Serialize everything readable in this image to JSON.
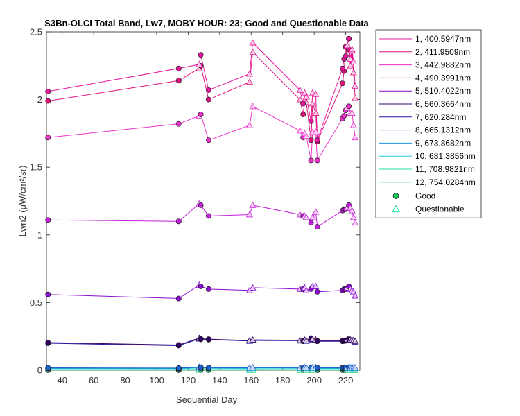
{
  "chart_data": {
    "type": "line",
    "title": "S3Bn-OLCI Total Band, Lw7, MOBY HOUR: 23;  Good and Questionable Data",
    "xlabel": "Sequential Day",
    "ylabel": "Lwn2 (µW/cm²/sr)",
    "xlim": [
      30,
      229
    ],
    "ylim": [
      0,
      2.5
    ],
    "xticks": [
      40,
      60,
      80,
      100,
      120,
      140,
      160,
      180,
      200,
      220
    ],
    "yticks": [
      0,
      0.5,
      1,
      1.5,
      2,
      2.5
    ],
    "ytick_labels": [
      "0",
      "0.5",
      "1",
      "1.5",
      "2",
      "2.5"
    ],
    "x": [
      31,
      114,
      127,
      128,
      133,
      159,
      161,
      191,
      193,
      194,
      195,
      198,
      199,
      201,
      202,
      218,
      219,
      220,
      221,
      222,
      223,
      224,
      225,
      226
    ],
    "quality": [
      "G",
      "G",
      "Q",
      "G",
      "G",
      "Q",
      "Q",
      "Q",
      "G",
      "Q",
      "Q",
      "G",
      "Q",
      "Q",
      "G",
      "G",
      "G",
      "G",
      "Q",
      "G",
      "Q",
      "Q",
      "Q",
      "Q"
    ],
    "series": [
      {
        "name": "1, 400.5947nm",
        "color": "#e8179c",
        "values": [
          2.06,
          2.23,
          2.26,
          2.33,
          2.07,
          2.19,
          2.42,
          2.07,
          1.97,
          2.05,
          2.02,
          1.84,
          2.05,
          2.04,
          1.7,
          2.23,
          2.3,
          2.32,
          2.4,
          2.45,
          2.3,
          2.37,
          2.28,
          2.1
        ]
      },
      {
        "name": "2, 411.9509nm",
        "color": "#e0137c",
        "values": [
          1.99,
          2.14,
          2.23,
          2.25,
          2.0,
          2.13,
          2.35,
          2.0,
          1.89,
          1.99,
          1.98,
          1.7,
          1.97,
          1.9,
          1.69,
          2.12,
          2.21,
          2.39,
          2.34,
          2.37,
          2.25,
          2.36,
          2.2,
          2.01
        ]
      },
      {
        "name": "3, 442.9882nm",
        "color": "#ee33cc",
        "values": [
          1.72,
          1.82,
          1.88,
          1.89,
          1.7,
          1.81,
          1.95,
          1.77,
          1.72,
          1.75,
          1.73,
          1.55,
          1.76,
          1.76,
          1.55,
          1.86,
          1.88,
          1.92,
          1.94,
          1.95,
          1.9,
          1.9,
          1.81,
          1.72
        ]
      },
      {
        "name": "4, 490.3991nm",
        "color": "#c21fd8",
        "values": [
          1.11,
          1.1,
          1.23,
          1.22,
          1.14,
          1.15,
          1.22,
          1.15,
          1.14,
          1.14,
          1.13,
          1.09,
          1.13,
          1.17,
          1.06,
          1.18,
          1.19,
          1.19,
          1.2,
          1.22,
          1.2,
          1.18,
          1.13,
          1.09
        ]
      },
      {
        "name": "5, 510.4022nm",
        "color": "#8e0cd4",
        "values": [
          0.56,
          0.53,
          0.63,
          0.62,
          0.6,
          0.59,
          0.61,
          0.6,
          0.6,
          0.61,
          0.59,
          0.6,
          0.62,
          0.62,
          0.58,
          0.59,
          0.6,
          0.6,
          0.61,
          0.62,
          0.6,
          0.59,
          0.58,
          0.55
        ]
      },
      {
        "name": "6, 560.3664nm",
        "color": "#330066",
        "values": [
          0.205,
          0.187,
          0.238,
          0.233,
          0.23,
          0.22,
          0.225,
          0.222,
          0.218,
          0.225,
          0.22,
          0.238,
          0.23,
          0.226,
          0.218,
          0.218,
          0.22,
          0.222,
          0.228,
          0.23,
          0.226,
          0.225,
          0.222,
          0.215
        ]
      },
      {
        "name": "7,  620.284nm",
        "color": "#2219a8",
        "values": [
          0.2,
          0.182,
          0.232,
          0.228,
          0.226,
          0.216,
          0.22,
          0.218,
          0.214,
          0.22,
          0.216,
          0.232,
          0.225,
          0.222,
          0.214,
          0.214,
          0.216,
          0.218,
          0.224,
          0.226,
          0.222,
          0.22,
          0.218,
          0.21
        ]
      },
      {
        "name": "8, 665.1312nm",
        "color": "#1a5fd0",
        "values": [
          0.018,
          0.016,
          0.024,
          0.022,
          0.02,
          0.019,
          0.021,
          0.02,
          0.019,
          0.021,
          0.02,
          0.022,
          0.021,
          0.021,
          0.019,
          0.019,
          0.02,
          0.02,
          0.021,
          0.022,
          0.021,
          0.02,
          0.02,
          0.019
        ]
      },
      {
        "name": "9, 673.8682nm",
        "color": "#1f96e6",
        "values": [
          0.015,
          0.014,
          0.02,
          0.019,
          0.017,
          0.016,
          0.018,
          0.017,
          0.016,
          0.018,
          0.017,
          0.019,
          0.018,
          0.018,
          0.016,
          0.016,
          0.017,
          0.017,
          0.018,
          0.019,
          0.018,
          0.017,
          0.017,
          0.016
        ]
      },
      {
        "name": "10, 681.3856nm",
        "color": "#1ecbd6",
        "values": [
          0.012,
          0.011,
          0.016,
          0.015,
          0.014,
          0.013,
          0.015,
          0.014,
          0.013,
          0.015,
          0.014,
          0.015,
          0.015,
          0.015,
          0.013,
          0.013,
          0.014,
          0.014,
          0.015,
          0.015,
          0.015,
          0.014,
          0.014,
          0.013
        ]
      },
      {
        "name": "11, 708.9821nm",
        "color": "#1fe0a6",
        "values": [
          0.004,
          0.004,
          0.006,
          0.006,
          0.005,
          0.005,
          0.006,
          0.005,
          0.005,
          0.006,
          0.005,
          0.006,
          0.006,
          0.006,
          0.005,
          0.005,
          0.005,
          0.005,
          0.006,
          0.006,
          0.006,
          0.005,
          0.005,
          0.005
        ]
      },
      {
        "name": "12, 754.0284nm",
        "color": "#18c85a",
        "values": [
          0.001,
          0.001,
          0.002,
          0.002,
          0.001,
          0.001,
          0.002,
          0.001,
          0.001,
          0.002,
          0.001,
          0.002,
          0.002,
          0.002,
          0.001,
          0.001,
          0.001,
          0.001,
          0.002,
          0.002,
          0.002,
          0.001,
          0.001,
          0.001
        ]
      }
    ],
    "legend": {
      "position": "outside-right",
      "markers": [
        {
          "label": "Good",
          "symbol": "circle",
          "color": "#18c85a"
        },
        {
          "label": "Questionable",
          "symbol": "triangle",
          "color": "#1fe0a6"
        }
      ]
    }
  }
}
